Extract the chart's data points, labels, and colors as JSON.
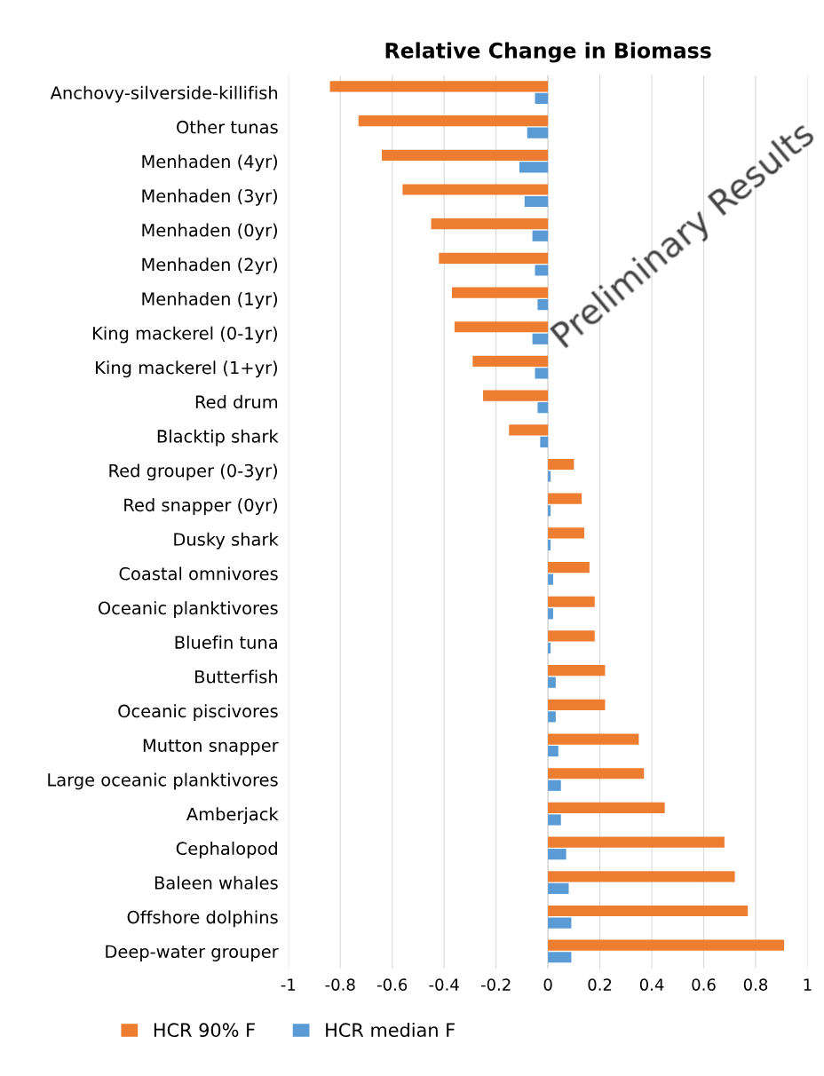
{
  "chart_data": {
    "type": "bar",
    "orientation": "horizontal",
    "title": "Relative Change in Biomass",
    "categories": [
      "Anchovy-silverside-killifish",
      "Other tunas",
      "Menhaden (4yr)",
      "Menhaden (3yr)",
      "Menhaden (0yr)",
      "Menhaden (2yr)",
      "Menhaden (1yr)",
      "King mackerel (0-1yr)",
      "King mackerel (1+yr)",
      "Red drum",
      "Blacktip shark",
      "Red grouper (0-3yr)",
      "Red snapper (0yr)",
      "Dusky shark",
      "Coastal omnivores",
      "Oceanic planktivores",
      "Bluefin tuna",
      "Butterfish",
      "Oceanic piscivores",
      "Mutton snapper",
      "Large oceanic planktivores",
      "Amberjack",
      "Cephalopod",
      "Baleen whales",
      "Offshore dolphins",
      "Deep-water grouper"
    ],
    "series": [
      {
        "name": "HCR 90% F",
        "color": "#ed7d31",
        "values": [
          -0.84,
          -0.73,
          -0.64,
          -0.56,
          -0.45,
          -0.42,
          -0.37,
          -0.36,
          -0.29,
          -0.25,
          -0.15,
          0.1,
          0.13,
          0.14,
          0.16,
          0.18,
          0.18,
          0.22,
          0.22,
          0.35,
          0.37,
          0.45,
          0.68,
          0.72,
          0.77,
          0.91
        ]
      },
      {
        "name": "HCR median F",
        "color": "#5b9bd5",
        "values": [
          -0.05,
          -0.08,
          -0.11,
          -0.09,
          -0.06,
          -0.05,
          -0.04,
          -0.06,
          -0.05,
          -0.04,
          -0.03,
          0.01,
          0.01,
          0.01,
          0.02,
          0.02,
          0.01,
          0.03,
          0.03,
          0.04,
          0.05,
          0.05,
          0.07,
          0.08,
          0.09,
          0.09
        ]
      }
    ],
    "xlim": [
      -1,
      1
    ],
    "xticks": [
      -1,
      -0.8,
      -0.6,
      -0.4,
      -0.2,
      0,
      0.2,
      0.4,
      0.6,
      0.8,
      1
    ],
    "grid": "x",
    "legend": "bottom",
    "annotations": [
      "Preliminary Results"
    ]
  }
}
